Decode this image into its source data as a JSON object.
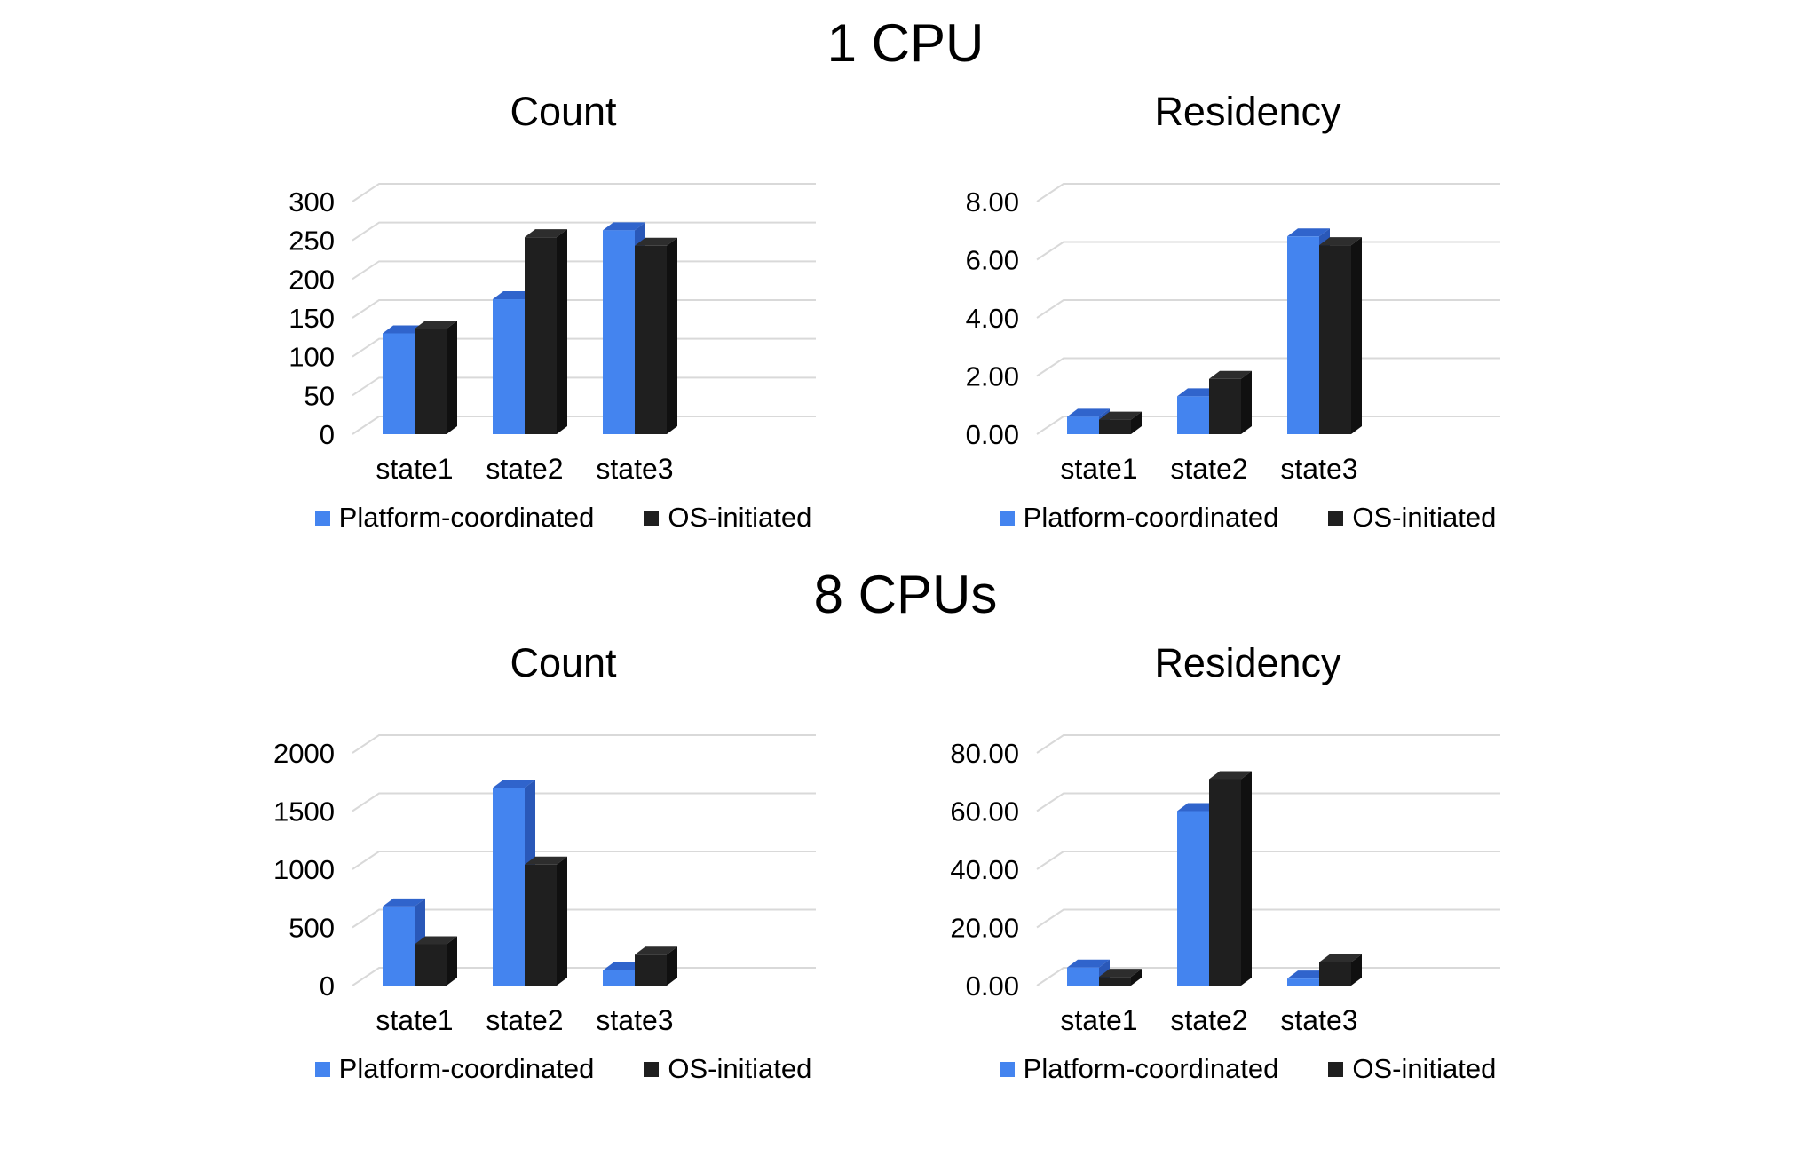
{
  "page": {
    "background": "#ffffff"
  },
  "colors": {
    "platform_front": "#4484EF",
    "platform_top": "#3064CC",
    "platform_side": "#2A58B8",
    "os_front": "#1F1F1F",
    "os_top": "#2D2D2D",
    "os_side": "#101010",
    "gridline": "#D9D9D9",
    "text": "#000000"
  },
  "legend": {
    "platform": "Platform-coordinated",
    "os": "OS-initiated"
  },
  "sections": [
    {
      "title": "1 CPU"
    },
    {
      "title": "8 CPUs"
    }
  ],
  "chart_data": [
    {
      "group": "1 CPU",
      "title": "Count",
      "type": "bar",
      "categories": [
        "state1",
        "state2",
        "state3"
      ],
      "series": [
        {
          "name": "Platform-coordinated",
          "values": [
            130,
            174,
            263
          ]
        },
        {
          "name": "OS-initiated",
          "values": [
            136,
            254,
            243
          ]
        }
      ],
      "ylim": [
        0,
        300
      ],
      "ystep": 50,
      "yticks": [
        "0",
        "50",
        "100",
        "150",
        "200",
        "250",
        "300"
      ],
      "tick_format": "int",
      "grid": true,
      "style": "3d",
      "legend_position": "bottom"
    },
    {
      "group": "1 CPU",
      "title": "Residency",
      "type": "bar",
      "categories": [
        "state1",
        "state2",
        "state3"
      ],
      "series": [
        {
          "name": "Platform-coordinated",
          "values": [
            0.6,
            1.3,
            6.8
          ]
        },
        {
          "name": "OS-initiated",
          "values": [
            0.5,
            1.9,
            6.5
          ]
        }
      ],
      "ylim": [
        0,
        8
      ],
      "ystep": 2,
      "yticks": [
        "0.00",
        "2.00",
        "4.00",
        "6.00",
        "8.00"
      ],
      "tick_format": "2dp",
      "grid": true,
      "style": "3d",
      "legend_position": "bottom"
    },
    {
      "group": "8 CPUs",
      "title": "Count",
      "type": "bar",
      "categories": [
        "state1",
        "state2",
        "state3"
      ],
      "series": [
        {
          "name": "Platform-coordinated",
          "values": [
            680,
            1700,
            130
          ]
        },
        {
          "name": "OS-initiated",
          "values": [
            355,
            1040,
            265
          ]
        }
      ],
      "ylim": [
        0,
        2000
      ],
      "ystep": 500,
      "yticks": [
        "0",
        "500",
        "1000",
        "1500",
        "2000"
      ],
      "tick_format": "int",
      "grid": true,
      "style": "3d",
      "legend_position": "bottom"
    },
    {
      "group": "8 CPUs",
      "title": "Residency",
      "type": "bar",
      "categories": [
        "state1",
        "state2",
        "state3"
      ],
      "series": [
        {
          "name": "Platform-coordinated",
          "values": [
            6.2,
            60,
            2.4
          ]
        },
        {
          "name": "OS-initiated",
          "values": [
            3,
            71,
            8
          ]
        }
      ],
      "ylim": [
        0,
        80
      ],
      "ystep": 20,
      "yticks": [
        "0.00",
        "20.00",
        "40.00",
        "60.00",
        "80.00"
      ],
      "tick_format": "2dp",
      "grid": true,
      "style": "3d",
      "legend_position": "bottom"
    }
  ]
}
